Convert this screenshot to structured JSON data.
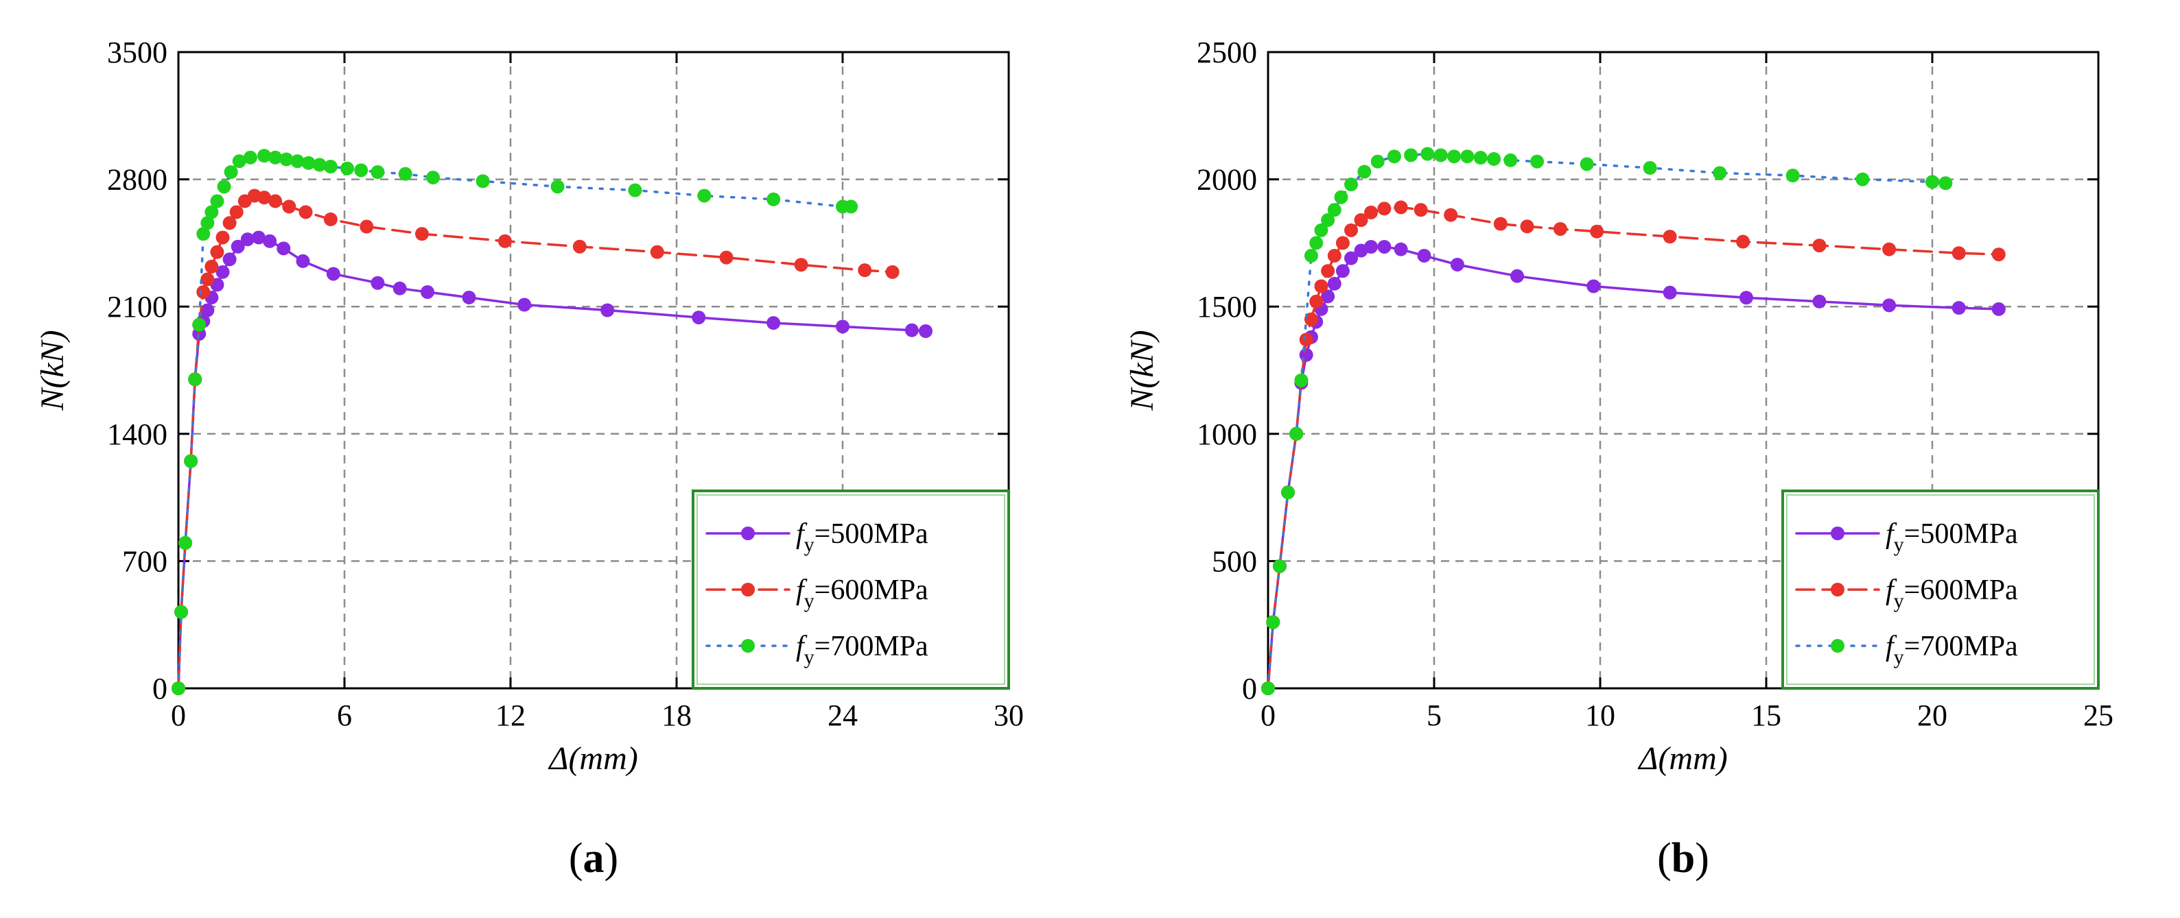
{
  "chart_data": [
    {
      "type": "line",
      "panel_label": "a",
      "xlabel": "Δ(mm)",
      "ylabel": "N(kN)",
      "xlim": [
        0,
        30
      ],
      "ylim": [
        0,
        3500
      ],
      "xticks": [
        0,
        6,
        12,
        18,
        24,
        30
      ],
      "yticks": [
        0,
        700,
        1400,
        2100,
        2800,
        3500
      ],
      "grid": true,
      "legend_position": "bottom-right",
      "series": [
        {
          "name": "fy=500MPa",
          "symbol": "f",
          "subscript": "y",
          "value_text": "=500MPa",
          "color": "#8a2be2",
          "dash": "solid",
          "x": [
            0,
            0.1,
            0.25,
            0.45,
            0.6,
            0.75,
            0.9,
            1.05,
            1.2,
            1.4,
            1.6,
            1.85,
            2.15,
            2.5,
            2.9,
            3.3,
            3.8,
            4.5,
            5.6,
            7.2,
            8.0,
            9.0,
            10.5,
            12.5,
            15.5,
            18.8,
            21.5,
            24.0,
            26.5,
            27.0
          ],
          "y": [
            0,
            420,
            800,
            1250,
            1700,
            1950,
            2020,
            2080,
            2150,
            2220,
            2290,
            2360,
            2430,
            2470,
            2480,
            2460,
            2420,
            2350,
            2280,
            2230,
            2200,
            2180,
            2150,
            2110,
            2080,
            2040,
            2010,
            1990,
            1970,
            1965
          ]
        },
        {
          "name": "fy=600MPa",
          "symbol": "f",
          "subscript": "y",
          "value_text": "=600MPa",
          "color": "#e8322b",
          "dash": "dashed",
          "x": [
            0,
            0.1,
            0.25,
            0.45,
            0.6,
            0.75,
            0.9,
            1.05,
            1.2,
            1.4,
            1.6,
            1.85,
            2.1,
            2.4,
            2.75,
            3.1,
            3.5,
            4.0,
            4.6,
            5.5,
            6.8,
            8.8,
            11.8,
            14.5,
            17.3,
            19.8,
            22.5,
            24.8,
            25.8
          ],
          "y": [
            0,
            420,
            800,
            1250,
            1700,
            2000,
            2180,
            2250,
            2320,
            2400,
            2480,
            2560,
            2620,
            2680,
            2710,
            2700,
            2680,
            2650,
            2620,
            2580,
            2540,
            2500,
            2460,
            2430,
            2400,
            2370,
            2330,
            2300,
            2290
          ]
        },
        {
          "name": "fy=700MPa",
          "symbol": "f",
          "subscript": "y",
          "value_text": "=700MPa",
          "color": "#1fd41f",
          "line_color": "#3a78d8",
          "dash": "dotted",
          "x": [
            0,
            0.1,
            0.25,
            0.45,
            0.6,
            0.75,
            0.9,
            1.05,
            1.2,
            1.4,
            1.65,
            1.9,
            2.2,
            2.6,
            3.1,
            3.5,
            3.9,
            4.3,
            4.7,
            5.1,
            5.5,
            6.1,
            6.6,
            7.2,
            8.2,
            9.2,
            11.0,
            13.7,
            16.5,
            19.0,
            21.5,
            24.0,
            24.3
          ],
          "y": [
            0,
            420,
            800,
            1250,
            1700,
            2000,
            2500,
            2560,
            2620,
            2680,
            2760,
            2840,
            2900,
            2920,
            2930,
            2920,
            2910,
            2900,
            2890,
            2880,
            2870,
            2860,
            2850,
            2840,
            2830,
            2810,
            2790,
            2760,
            2740,
            2710,
            2690,
            2650,
            2650
          ]
        }
      ]
    },
    {
      "type": "line",
      "panel_label": "b",
      "xlabel": "Δ(mm)",
      "ylabel": "N(kN)",
      "xlim": [
        0,
        25
      ],
      "ylim": [
        0,
        2500
      ],
      "xticks": [
        0,
        5,
        10,
        15,
        20,
        25
      ],
      "yticks": [
        0,
        500,
        1000,
        1500,
        2000,
        2500
      ],
      "grid": true,
      "legend_position": "bottom-right",
      "series": [
        {
          "name": "fy=500MPa",
          "symbol": "f",
          "subscript": "y",
          "value_text": "=500MPa",
          "color": "#8a2be2",
          "dash": "solid",
          "x": [
            0,
            0.15,
            0.35,
            0.6,
            0.85,
            1.0,
            1.15,
            1.3,
            1.45,
            1.6,
            1.8,
            2.0,
            2.25,
            2.5,
            2.8,
            3.1,
            3.5,
            4.0,
            4.7,
            5.7,
            7.5,
            9.8,
            12.1,
            14.4,
            16.6,
            18.7,
            20.8,
            22.0
          ],
          "y": [
            0,
            260,
            480,
            770,
            1000,
            1200,
            1310,
            1380,
            1440,
            1490,
            1540,
            1590,
            1640,
            1690,
            1720,
            1735,
            1735,
            1725,
            1700,
            1665,
            1620,
            1580,
            1555,
            1535,
            1520,
            1505,
            1495,
            1490
          ]
        },
        {
          "name": "fy=600MPa",
          "symbol": "f",
          "subscript": "y",
          "value_text": "=600MPa",
          "color": "#e8322b",
          "dash": "dashed",
          "x": [
            0,
            0.15,
            0.35,
            0.6,
            0.85,
            1.0,
            1.15,
            1.3,
            1.45,
            1.6,
            1.8,
            2.0,
            2.25,
            2.5,
            2.8,
            3.1,
            3.5,
            4.0,
            4.6,
            5.5,
            7.0,
            7.8,
            8.8,
            9.9,
            12.1,
            14.3,
            16.6,
            18.7,
            20.8,
            22.0
          ],
          "y": [
            0,
            260,
            480,
            770,
            1000,
            1210,
            1370,
            1450,
            1520,
            1580,
            1640,
            1700,
            1750,
            1800,
            1840,
            1870,
            1885,
            1890,
            1880,
            1860,
            1825,
            1815,
            1805,
            1795,
            1775,
            1755,
            1740,
            1725,
            1710,
            1705
          ]
        },
        {
          "name": "fy=700MPa",
          "symbol": "f",
          "subscript": "y",
          "value_text": "=700MPa",
          "color": "#1fd41f",
          "line_color": "#3a78d8",
          "dash": "dotted",
          "x": [
            0,
            0.15,
            0.35,
            0.6,
            0.85,
            1.0,
            1.3,
            1.45,
            1.6,
            1.8,
            2.0,
            2.2,
            2.5,
            2.9,
            3.3,
            3.8,
            4.3,
            4.8,
            5.2,
            5.6,
            6.0,
            6.4,
            6.8,
            7.3,
            8.1,
            9.6,
            11.5,
            13.6,
            15.8,
            17.9,
            20.0,
            20.4
          ],
          "y": [
            0,
            260,
            480,
            770,
            1000,
            1210,
            1700,
            1750,
            1800,
            1840,
            1880,
            1930,
            1980,
            2030,
            2070,
            2090,
            2095,
            2100,
            2095,
            2090,
            2090,
            2085,
            2080,
            2075,
            2070,
            2060,
            2045,
            2025,
            2015,
            2000,
            1990,
            1985
          ]
        }
      ]
    }
  ]
}
